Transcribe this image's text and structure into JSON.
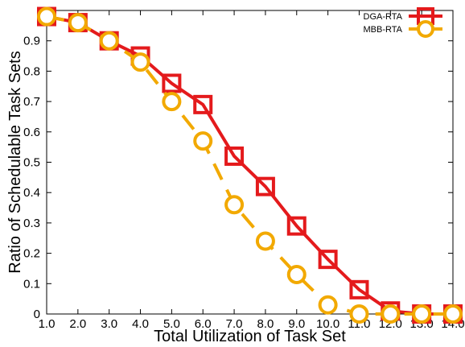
{
  "chart_data": {
    "type": "line",
    "title": "",
    "xlabel": "Total Utilization of Task Set",
    "ylabel": "Ratio of Schedulable Task Sets",
    "x": [
      1.0,
      2.0,
      3.0,
      4.0,
      5.0,
      6.0,
      7.0,
      8.0,
      9.0,
      10.0,
      11.0,
      12.0,
      13.0,
      14.0
    ],
    "x_tick_labels": [
      "1.0",
      "2.0",
      "3.0",
      "4.0",
      "5.0",
      "6.0",
      "7.0",
      "8.0",
      "9.0",
      "10.0",
      "11.0",
      "12.0",
      "13.0",
      "14.0"
    ],
    "xlim": [
      1.0,
      14.0
    ],
    "ylim": [
      0,
      1.0
    ],
    "y_tick_labels": [
      "0",
      "0.1",
      "0.2",
      "0.3",
      "0.4",
      "0.5",
      "0.6",
      "0.7",
      "0.8",
      "0.9"
    ],
    "y_ticks": [
      0,
      0.1,
      0.2,
      0.3,
      0.4,
      0.5,
      0.6,
      0.7,
      0.8,
      0.9
    ],
    "grid": false,
    "legend_position": "top-right",
    "series": [
      {
        "name": "DGA-RTA",
        "color": "#e41a1c",
        "marker": "square",
        "line_style": "solid",
        "values": [
          0.98,
          0.96,
          0.9,
          0.85,
          0.76,
          0.69,
          0.52,
          0.42,
          0.29,
          0.18,
          0.08,
          0.01,
          0.0,
          0.0
        ]
      },
      {
        "name": "MBB-RTA",
        "color": "#f2a900",
        "marker": "circle",
        "line_style": "dashed",
        "values": [
          0.98,
          0.96,
          0.9,
          0.83,
          0.7,
          0.57,
          0.36,
          0.24,
          0.13,
          0.03,
          0.0,
          0.0,
          0.0,
          0.0
        ]
      }
    ]
  }
}
